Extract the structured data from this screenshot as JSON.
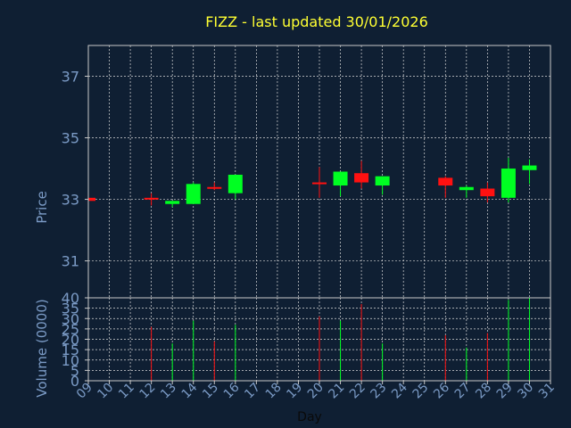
{
  "chart_data": [
    {
      "type": "candlestick",
      "title": "FIZZ - last updated 30/01/2026",
      "ylabel": "Price",
      "ylim": [
        29.8,
        38.0
      ],
      "yticks": [
        31,
        33,
        35,
        37
      ],
      "grid": true,
      "candles": [
        {
          "day": "09",
          "open": 33.05,
          "high": 33.1,
          "low": 32.95,
          "close": 32.95
        },
        {
          "day": "12",
          "open": 33.05,
          "high": 33.2,
          "low": 32.8,
          "close": 33.0
        },
        {
          "day": "13",
          "open": 32.85,
          "high": 32.95,
          "low": 32.75,
          "close": 32.95
        },
        {
          "day": "14",
          "open": 32.85,
          "high": 33.55,
          "low": 32.85,
          "close": 33.5
        },
        {
          "day": "15",
          "open": 33.4,
          "high": 33.55,
          "low": 33.3,
          "close": 33.35
        },
        {
          "day": "16",
          "open": 33.2,
          "high": 33.8,
          "low": 33.0,
          "close": 33.8
        },
        {
          "day": "20",
          "open": 33.55,
          "high": 34.05,
          "low": 33.05,
          "close": 33.5
        },
        {
          "day": "21",
          "open": 33.45,
          "high": 33.9,
          "low": 33.1,
          "close": 33.9
        },
        {
          "day": "22",
          "open": 33.85,
          "high": 34.25,
          "low": 33.35,
          "close": 33.55
        },
        {
          "day": "23",
          "open": 33.45,
          "high": 33.75,
          "low": 33.15,
          "close": 33.75
        },
        {
          "day": "26",
          "open": 33.7,
          "high": 33.75,
          "low": 33.05,
          "close": 33.45
        },
        {
          "day": "27",
          "open": 33.3,
          "high": 33.45,
          "low": 33.05,
          "close": 33.4
        },
        {
          "day": "28",
          "open": 33.35,
          "high": 33.55,
          "low": 32.9,
          "close": 33.1
        },
        {
          "day": "29",
          "open": 33.05,
          "high": 34.35,
          "low": 32.9,
          "close": 34.0
        },
        {
          "day": "30",
          "open": 33.95,
          "high": 34.3,
          "low": 33.5,
          "close": 34.1
        }
      ]
    },
    {
      "type": "bar",
      "xlabel": "Day",
      "ylabel": "Volume (0000)",
      "ylim": [
        0,
        40
      ],
      "yticks": [
        0,
        5,
        10,
        15,
        20,
        25,
        30,
        35,
        40
      ],
      "categories": [
        "09",
        "10",
        "11",
        "12",
        "13",
        "14",
        "15",
        "16",
        "17",
        "18",
        "19",
        "20",
        "21",
        "22",
        "23",
        "24",
        "25",
        "26",
        "27",
        "28",
        "29",
        "30",
        "31"
      ],
      "volume": [
        {
          "day": "12",
          "value": 26,
          "direction": "down"
        },
        {
          "day": "13",
          "value": 18,
          "direction": "up"
        },
        {
          "day": "14",
          "value": 29,
          "direction": "up"
        },
        {
          "day": "15",
          "value": 19,
          "direction": "down"
        },
        {
          "day": "16",
          "value": 27,
          "direction": "up"
        },
        {
          "day": "20",
          "value": 31,
          "direction": "down"
        },
        {
          "day": "21",
          "value": 29,
          "direction": "up"
        },
        {
          "day": "22",
          "value": 37,
          "direction": "down"
        },
        {
          "day": "23",
          "value": 18,
          "direction": "up"
        },
        {
          "day": "26",
          "value": 22,
          "direction": "down"
        },
        {
          "day": "27",
          "value": 16,
          "direction": "up"
        },
        {
          "day": "28",
          "value": 23,
          "direction": "down"
        },
        {
          "day": "29",
          "value": 39,
          "direction": "up"
        },
        {
          "day": "30",
          "value": 40,
          "direction": "up"
        }
      ],
      "grid": true
    }
  ],
  "colors": {
    "background": "#0f1f33",
    "title": "#ffff33",
    "axis_text": "#7b9bc6",
    "grid": "#d9d9d9",
    "frame": "#c8c8c8",
    "up": "#00ff22",
    "down": "#ff1111"
  }
}
